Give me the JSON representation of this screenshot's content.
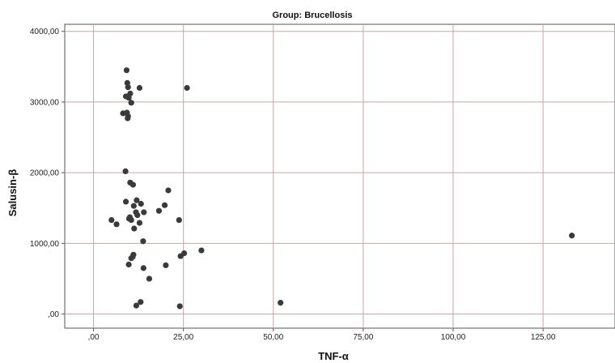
{
  "chart_data": {
    "type": "scatter",
    "title": "Group: Brucellosis",
    "xlabel": "TNF-α",
    "ylabel": "Salusin-β",
    "xlim": [
      -8,
      145
    ],
    "ylim": [
      -200,
      4100
    ],
    "x_ticks": [
      0,
      25,
      50,
      75,
      100,
      125
    ],
    "x_tick_labels": [
      ",00",
      "25,00",
      "50,00",
      "75,00",
      "100,00",
      "125,00"
    ],
    "y_ticks": [
      0,
      1000,
      2000,
      3000,
      4000
    ],
    "y_tick_labels": [
      ",00",
      "1000,00",
      "2000,00",
      "3000,00",
      "4000,00"
    ],
    "grid": true,
    "colors": {
      "point": "#3a3a3a",
      "grid": "#c8a6a6",
      "axis": "#555555"
    },
    "series": [
      {
        "points": [
          [
            9.2,
            3450
          ],
          [
            9.4,
            3270
          ],
          [
            9.6,
            3210
          ],
          [
            10.2,
            3120
          ],
          [
            9.0,
            3080
          ],
          [
            9.8,
            3060
          ],
          [
            12.8,
            3200
          ],
          [
            26.0,
            3200
          ],
          [
            10.5,
            2990
          ],
          [
            8.2,
            2840
          ],
          [
            9.3,
            2850
          ],
          [
            9.6,
            2800
          ],
          [
            9.5,
            2770
          ],
          [
            8.9,
            2020
          ],
          [
            10.2,
            1860
          ],
          [
            11.0,
            1830
          ],
          [
            20.8,
            1750
          ],
          [
            12.0,
            1610
          ],
          [
            9.0,
            1590
          ],
          [
            13.2,
            1560
          ],
          [
            19.8,
            1540
          ],
          [
            11.2,
            1530
          ],
          [
            18.2,
            1460
          ],
          [
            11.8,
            1440
          ],
          [
            14.0,
            1440
          ],
          [
            10.1,
            1370
          ],
          [
            12.2,
            1400
          ],
          [
            9.9,
            1350
          ],
          [
            5.0,
            1330
          ],
          [
            10.5,
            1330
          ],
          [
            23.8,
            1330
          ],
          [
            6.4,
            1270
          ],
          [
            12.8,
            1290
          ],
          [
            11.3,
            1210
          ],
          [
            13.8,
            1030
          ],
          [
            30.0,
            900
          ],
          [
            25.2,
            860
          ],
          [
            11.1,
            840
          ],
          [
            24.2,
            820
          ],
          [
            10.9,
            810
          ],
          [
            10.5,
            790
          ],
          [
            9.8,
            700
          ],
          [
            20.1,
            690
          ],
          [
            13.9,
            650
          ],
          [
            15.5,
            500
          ],
          [
            13.1,
            170
          ],
          [
            11.9,
            120
          ],
          [
            24.0,
            110
          ],
          [
            52.0,
            160
          ],
          [
            133.0,
            1110
          ]
        ]
      }
    ]
  }
}
